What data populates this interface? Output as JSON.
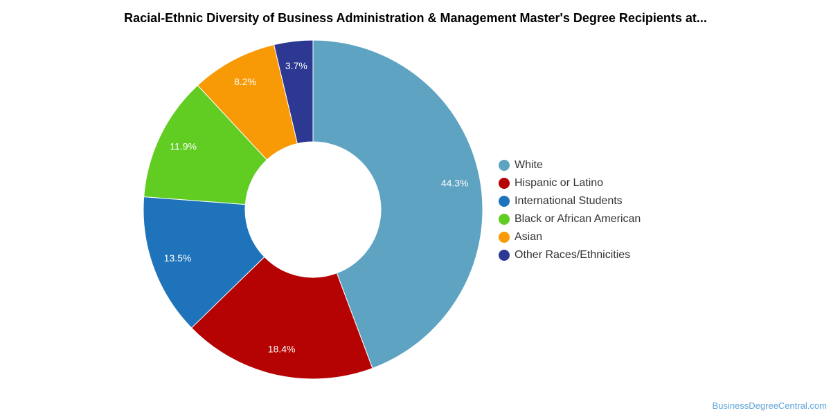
{
  "chart_data": {
    "type": "pie",
    "title": "Racial-Ethnic Diversity of Business Administration & Management Master's Degree Recipients at...",
    "donut": true,
    "legend_position": "right",
    "categories": [
      "White",
      "Hispanic or Latino",
      "International Students",
      "Black or African American",
      "Asian",
      "Other Races/Ethnicities"
    ],
    "values": [
      44.3,
      18.4,
      13.5,
      11.9,
      8.2,
      3.7
    ],
    "data_labels": [
      "44.3%",
      "18.4%",
      "13.5%",
      "11.9%",
      "8.2%",
      "3.7%"
    ],
    "colors": [
      "#5ea3c1",
      "#b50202",
      "#1e73bb",
      "#61cd23",
      "#f79a05",
      "#2c3892"
    ]
  },
  "credit": "BusinessDegreeCentral.com"
}
